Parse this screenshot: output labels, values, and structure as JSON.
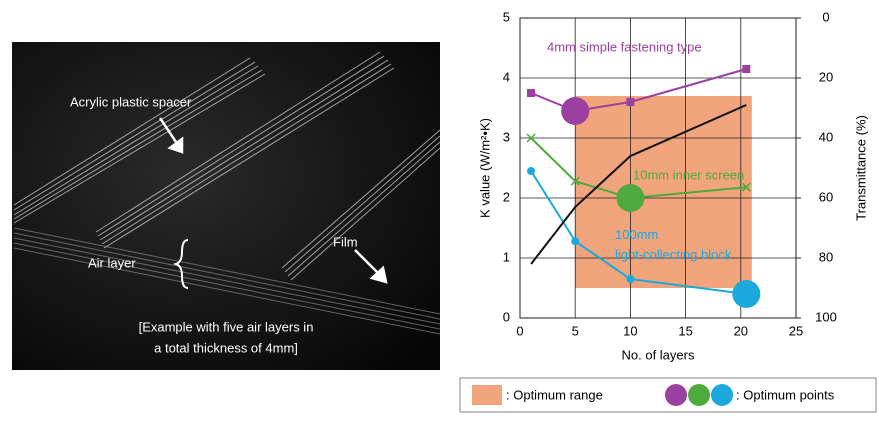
{
  "photo": {
    "labels": [
      "Acrylic plastic spacer",
      "Air layer",
      "Film"
    ],
    "caption": [
      "[Example with five air layers in",
      "a total thickness of 4mm]"
    ]
  },
  "chart_data": {
    "type": "line",
    "x_label": "No. of layers",
    "y_label": "K value (W/m²•K)",
    "y2_label": "Transmittance (%)",
    "xlim": [
      0,
      25
    ],
    "xticks": [
      0,
      5,
      10,
      15,
      20,
      25
    ],
    "ylim": [
      0,
      5
    ],
    "yticks": [
      0,
      1,
      2,
      3,
      4,
      5
    ],
    "y2lim": [
      100,
      0
    ],
    "y2ticks": [
      0,
      20,
      40,
      60,
      80,
      100
    ],
    "grid": true,
    "series": [
      {
        "name": "4mm simple fastening type",
        "color": "#9b3fa0",
        "marker": "square",
        "x": [
          1,
          5,
          10,
          20.5
        ],
        "values": [
          3.75,
          3.45,
          3.6,
          4.15
        ]
      },
      {
        "name": "10mm inner screen",
        "color": "#4daa3c",
        "marker": "x",
        "x": [
          1,
          5,
          10,
          20.5
        ],
        "values": [
          3.0,
          2.28,
          2.0,
          2.18
        ]
      },
      {
        "name": "100mm light-collecting block",
        "color": "#1ba8dc",
        "marker": "circle",
        "x": [
          1,
          5,
          10,
          20.5
        ],
        "values": [
          2.45,
          1.28,
          0.65,
          0.4
        ]
      },
      {
        "color": "#111111",
        "axis": "y2",
        "x": [
          1,
          5,
          10,
          20.5
        ],
        "values": [
          82,
          63,
          46,
          29
        ]
      }
    ],
    "optimum_range": {
      "label": ": Optimum range",
      "color": "#f2a57c",
      "x": [
        5,
        21
      ],
      "y": [
        0.5,
        3.7
      ]
    },
    "optimum_points": {
      "label": ": Optimum points",
      "x": [
        5,
        10,
        20.5
      ],
      "y": [
        3.45,
        2.0,
        0.4
      ],
      "colors": [
        "#9b3fa0",
        "#4daa3c",
        "#1ba8dc"
      ]
    }
  }
}
